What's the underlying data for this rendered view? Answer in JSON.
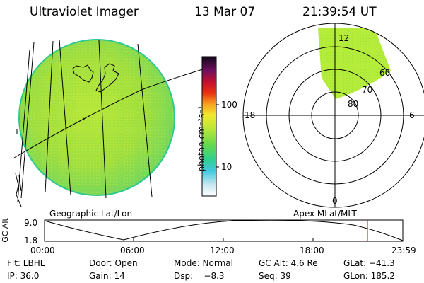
{
  "header": {
    "instrument": "Ultraviolet Imager",
    "date": "13 Mar 07",
    "time": "21:39:54 UT"
  },
  "colorbar": {
    "unit_label": "photon cm⁻²s⁻¹",
    "tick_100": "100",
    "tick_10": "10"
  },
  "polar_plot": {
    "mlt_labels": [
      "12",
      "18",
      "6",
      "0"
    ],
    "mlat_labels": [
      "60",
      "70",
      "80"
    ]
  },
  "panel_labels": {
    "geo": "Geographic Lat/Lon",
    "apex": "Apex MLat/MLT"
  },
  "altitude_plot": {
    "ylabel": "GC Alt",
    "y_ticks": [
      "9.0",
      "1.8"
    ],
    "x_ticks": [
      "00:00",
      "06:00",
      "12:00",
      "18:00",
      "23:59"
    ]
  },
  "status": {
    "filter": "Flt: LBHL",
    "door": "Door: Open",
    "mode": "Mode: Normal",
    "gc_alt": "GC Alt: 4.6 Re",
    "glat": "GLat: −41.3",
    "ip": "IP: 36.0",
    "gain": "Gain: 14",
    "dsp": "Dsp:    −8.3",
    "seq": "Seq: 39",
    "glon": "GLon: 185.2"
  },
  "colors": {
    "earth_disk": "#a8e23a",
    "earth_edge": "#3fd07a",
    "aurora": "#b3ec3a",
    "marker": "#e00000"
  }
}
